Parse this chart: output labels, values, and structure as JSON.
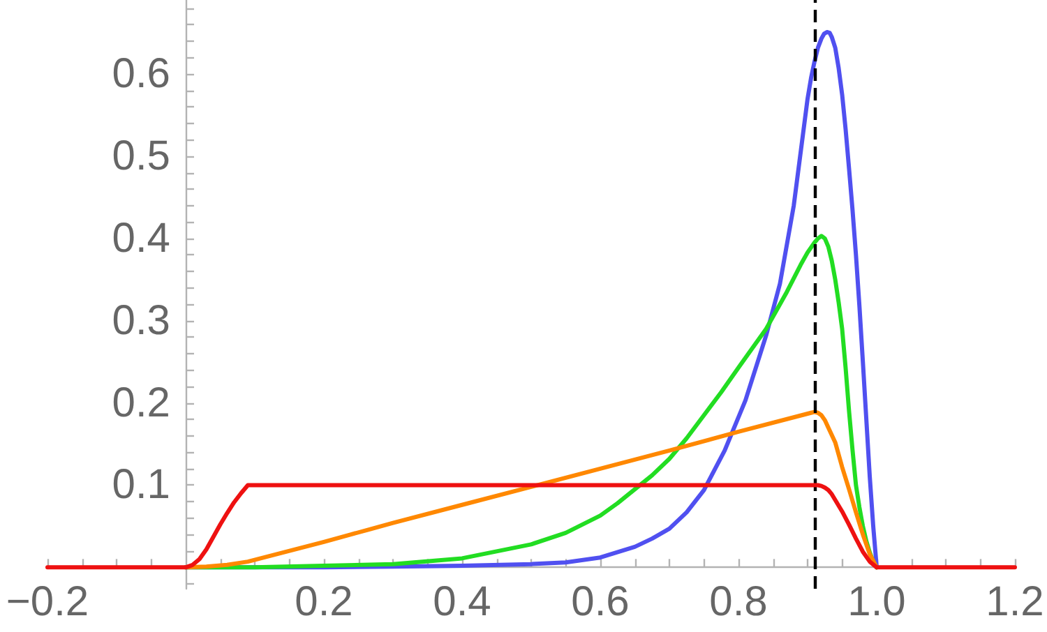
{
  "chart_data": {
    "type": "line",
    "series": [
      {
        "color": "#5050f0",
        "x": [
          0,
          0.1,
          0.2,
          0.3,
          0.4,
          0.5,
          0.55,
          0.6,
          0.65,
          0.675,
          0.7,
          0.725,
          0.75,
          0.78,
          0.81,
          0.84,
          0.86,
          0.88,
          0.9,
          0.905,
          0.91,
          0.915,
          0.92,
          0.924,
          0.928,
          0.932,
          0.935,
          0.94,
          0.945,
          0.95,
          0.955,
          0.96,
          0.965,
          0.97,
          0.975,
          0.98,
          0.985,
          0.99,
          0.995,
          1.0
        ],
        "values": [
          0,
          0,
          0,
          0.001,
          0.002,
          0.004,
          0.006,
          0.012,
          0.025,
          0.035,
          0.047,
          0.067,
          0.094,
          0.142,
          0.203,
          0.282,
          0.345,
          0.44,
          0.57,
          0.595,
          0.615,
          0.632,
          0.643,
          0.649,
          0.651,
          0.65,
          0.645,
          0.632,
          0.607,
          0.575,
          0.533,
          0.485,
          0.435,
          0.38,
          0.318,
          0.25,
          0.18,
          0.11,
          0.05,
          0
        ]
      },
      {
        "color": "#22dd22",
        "x": [
          0,
          0.1,
          0.2,
          0.3,
          0.4,
          0.5,
          0.55,
          0.6,
          0.625,
          0.65,
          0.675,
          0.7,
          0.725,
          0.75,
          0.775,
          0.8,
          0.84,
          0.87,
          0.89,
          0.9,
          0.91,
          0.915,
          0.92,
          0.925,
          0.93,
          0.935,
          0.94,
          0.945,
          0.95,
          0.955,
          0.96,
          0.965,
          0.97,
          0.975,
          0.98,
          0.985,
          0.99,
          0.995,
          1.0
        ],
        "values": [
          0,
          0,
          0.002,
          0.004,
          0.011,
          0.028,
          0.042,
          0.063,
          0.078,
          0.095,
          0.112,
          0.132,
          0.157,
          0.185,
          0.213,
          0.243,
          0.29,
          0.335,
          0.368,
          0.383,
          0.395,
          0.4,
          0.403,
          0.4,
          0.39,
          0.373,
          0.35,
          0.322,
          0.29,
          0.243,
          0.19,
          0.143,
          0.1,
          0.073,
          0.05,
          0.032,
          0.018,
          0.007,
          0
        ]
      },
      {
        "color": "#ff8800",
        "x": [
          0,
          0.03,
          0.06,
          0.09,
          0.2,
          0.3,
          0.4,
          0.5,
          0.6,
          0.7,
          0.8,
          0.905,
          0.91,
          0.915,
          0.92,
          0.925,
          0.93,
          0.94,
          0.95,
          0.96,
          0.97,
          0.98,
          0.99,
          1.0
        ],
        "values": [
          0,
          0.001,
          0.003,
          0.007,
          0.031,
          0.054,
          0.076,
          0.098,
          0.12,
          0.142,
          0.165,
          0.188,
          0.189,
          0.188,
          0.185,
          0.179,
          0.17,
          0.152,
          0.122,
          0.095,
          0.067,
          0.04,
          0.016,
          0
        ]
      },
      {
        "color": "#ee1111",
        "x": [
          -0.2,
          0,
          0.01,
          0.02,
          0.03,
          0.04,
          0.05,
          0.06,
          0.07,
          0.08,
          0.09,
          0.91,
          0.915,
          0.92,
          0.925,
          0.93,
          0.935,
          0.94,
          0.95,
          0.96,
          0.97,
          0.98,
          0.99,
          1.0,
          1.2
        ],
        "values": [
          0,
          0,
          0.003,
          0.01,
          0.022,
          0.037,
          0.052,
          0.066,
          0.079,
          0.09,
          0.1,
          0.1,
          0.1,
          0.099,
          0.097,
          0.094,
          0.089,
          0.082,
          0.068,
          0.052,
          0.035,
          0.019,
          0.007,
          0,
          0
        ]
      }
    ],
    "xlim": [
      -0.2,
      1.2
    ],
    "xticks": [
      {
        "value": -0.2,
        "label": "−0.2"
      },
      {
        "value": -0.15,
        "label": null
      },
      {
        "value": -0.1,
        "label": null
      },
      {
        "value": -0.05,
        "label": null
      },
      {
        "value": 0.05,
        "label": null
      },
      {
        "value": 0.1,
        "label": null
      },
      {
        "value": 0.15,
        "label": null
      },
      0.2,
      {
        "value": 0.25,
        "label": null
      },
      {
        "value": 0.3,
        "label": null
      },
      {
        "value": 0.35,
        "label": null
      },
      0.4,
      {
        "value": 0.45,
        "label": null
      },
      {
        "value": 0.5,
        "label": null
      },
      {
        "value": 0.55,
        "label": null
      },
      0.6,
      {
        "value": 0.65,
        "label": null
      },
      {
        "value": 0.7,
        "label": null
      },
      {
        "value": 0.75,
        "label": null
      },
      0.8,
      {
        "value": 0.85,
        "label": null
      },
      {
        "value": 0.9,
        "label": null
      },
      {
        "value": 0.95,
        "label": null
      },
      {
        "value": 1,
        "label": "1.0"
      },
      {
        "value": 1.05,
        "label": null
      },
      {
        "value": 1.1,
        "label": null
      },
      {
        "value": 1.15,
        "label": null
      },
      1.2
    ],
    "ylim": [
      -0.026,
      0.69
    ],
    "yticks": [
      {
        "value": -0.02,
        "label": null
      },
      {
        "value": 0.02,
        "label": null
      },
      {
        "value": 0.04,
        "label": null
      },
      {
        "value": 0.06,
        "label": null
      },
      {
        "value": 0.08,
        "label": null
      },
      0.1,
      {
        "value": 0.12,
        "label": null
      },
      {
        "value": 0.14,
        "label": null
      },
      {
        "value": 0.16,
        "label": null
      },
      {
        "value": 0.18,
        "label": null
      },
      0.2,
      {
        "value": 0.22,
        "label": null
      },
      {
        "value": 0.24,
        "label": null
      },
      {
        "value": 0.26,
        "label": null
      },
      {
        "value": 0.28,
        "label": null
      },
      0.3,
      {
        "value": 0.32,
        "label": null
      },
      {
        "value": 0.34,
        "label": null
      },
      {
        "value": 0.36,
        "label": null
      },
      {
        "value": 0.38,
        "label": null
      },
      0.4,
      {
        "value": 0.42,
        "label": null
      },
      {
        "value": 0.44,
        "label": null
      },
      {
        "value": 0.46,
        "label": null
      },
      {
        "value": 0.48,
        "label": null
      },
      0.5,
      {
        "value": 0.52,
        "label": null
      },
      {
        "value": 0.54,
        "label": null
      },
      {
        "value": 0.56,
        "label": null
      },
      {
        "value": 0.58,
        "label": null
      },
      0.6,
      {
        "value": 0.62,
        "label": null
      },
      {
        "value": 0.64,
        "label": null
      },
      {
        "value": 0.66,
        "label": null
      },
      {
        "value": 0.68,
        "label": null
      }
    ],
    "ref_lines": [
      {
        "axis": "x",
        "value": 0.91,
        "color": "#000000",
        "line_style": "dashed"
      }
    ],
    "grid": false,
    "marker": "none",
    "line_style": "solid"
  }
}
